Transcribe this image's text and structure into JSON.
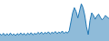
{
  "chart_data": {
    "type": "area",
    "values": [
      55,
      45,
      60,
      42,
      58,
      44,
      62,
      46,
      55,
      43,
      58,
      47,
      63,
      48,
      60,
      45,
      62,
      50,
      65,
      48,
      60,
      52,
      68,
      55,
      70,
      53,
      67,
      58,
      72,
      55,
      68,
      60,
      74,
      58,
      70,
      62,
      78,
      58,
      72,
      62,
      80,
      150,
      220,
      260,
      230,
      180,
      240,
      290,
      260,
      200,
      110,
      50,
      160,
      220,
      200,
      170,
      195,
      210,
      185,
      165,
      180,
      200,
      185,
      175
    ],
    "ylim": [
      0,
      320
    ],
    "grid": false,
    "tick_labels": false
  }
}
